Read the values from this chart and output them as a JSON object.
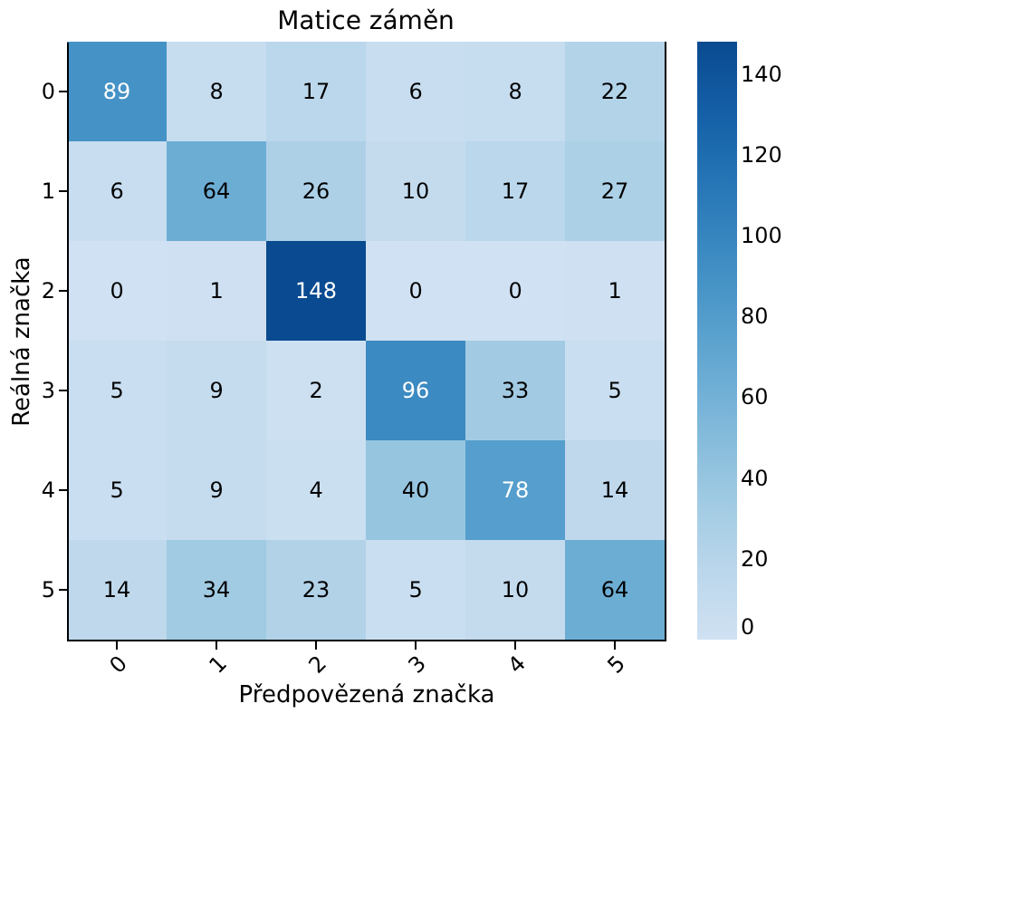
{
  "chart_data": {
    "type": "heatmap",
    "title": "Matice záměn",
    "xlabel": "Předpovězená značka",
    "ylabel": "Reálná značka",
    "categories": [
      "0",
      "1",
      "2",
      "3",
      "4",
      "5"
    ],
    "y_categories": [
      "0",
      "1",
      "2",
      "3",
      "4",
      "5"
    ],
    "cells": [
      [
        89,
        8,
        17,
        6,
        8,
        22
      ],
      [
        6,
        64,
        26,
        10,
        17,
        27
      ],
      [
        0,
        1,
        148,
        0,
        0,
        1
      ],
      [
        5,
        9,
        2,
        96,
        33,
        5
      ],
      [
        5,
        9,
        4,
        40,
        78,
        14
      ],
      [
        14,
        34,
        23,
        5,
        10,
        64
      ]
    ],
    "clim": [
      0,
      148
    ],
    "cticks": [
      0,
      20,
      40,
      60,
      80,
      100,
      120,
      140
    ],
    "data_labels": true
  }
}
